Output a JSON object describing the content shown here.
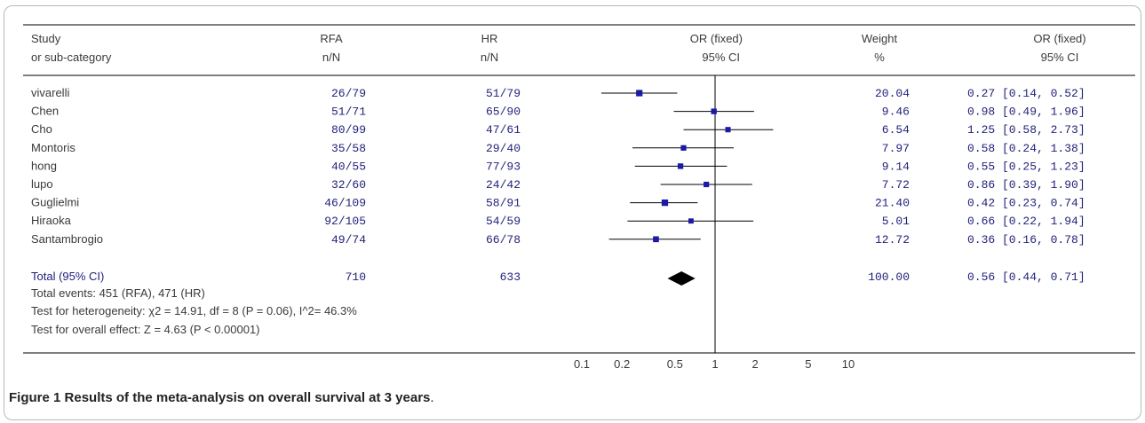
{
  "header": {
    "study_line1": "Study",
    "study_line2": "or sub-category",
    "rfa_line1": "RFA",
    "rfa_line2": "n/N",
    "hr_line1": "HR",
    "hr_line2": "n/N",
    "or_line1": "OR (fixed)",
    "or_line2": "95% CI",
    "weight_line1": "Weight",
    "weight_line2": "%",
    "orci_line1": "OR (fixed)",
    "orci_line2": "95% CI"
  },
  "studies": [
    {
      "name": "vivarelli",
      "rfa": "26/79",
      "hr": "51/79",
      "weight": "20.04",
      "ci_text": "0.27 [0.14, 0.52]"
    },
    {
      "name": "Chen",
      "rfa": "51/71",
      "hr": "65/90",
      "weight": "9.46",
      "ci_text": "0.98 [0.49, 1.96]"
    },
    {
      "name": "Cho",
      "rfa": "80/99",
      "hr": "47/61",
      "weight": "6.54",
      "ci_text": "1.25 [0.58, 2.73]"
    },
    {
      "name": "Montoris",
      "rfa": "35/58",
      "hr": "29/40",
      "weight": "7.97",
      "ci_text": "0.58 [0.24, 1.38]"
    },
    {
      "name": "hong",
      "rfa": "40/55",
      "hr": "77/93",
      "weight": "9.14",
      "ci_text": "0.55 [0.25, 1.23]"
    },
    {
      "name": "lupo",
      "rfa": "32/60",
      "hr": "24/42",
      "weight": "7.72",
      "ci_text": "0.86 [0.39, 1.90]"
    },
    {
      "name": "Guglielmi",
      "rfa": "46/109",
      "hr": "58/91",
      "weight": "21.40",
      "ci_text": "0.42 [0.23, 0.74]"
    },
    {
      "name": "Hiraoka",
      "rfa": "92/105",
      "hr": "54/59",
      "weight": "5.01",
      "ci_text": "0.66 [0.22, 1.94]"
    },
    {
      "name": "Santambrogio",
      "rfa": "49/74",
      "hr": "66/78",
      "weight": "12.72",
      "ci_text": "0.36 [0.16, 0.78]"
    }
  ],
  "total": {
    "label": "Total (95% CI)",
    "rfa": "710",
    "hr": "633",
    "weight": "100.00",
    "ci_text": "0.56 [0.44, 0.71]"
  },
  "footnotes": {
    "events": "Total events: 451 (RFA), 471 (HR)",
    "heterogeneity": "Test for heterogeneity:  χ2 = 14.91, df = 8 (P = 0.06), I^2= 46.3%",
    "overall": "Test for overall effect: Z = 4.63 (P < 0.00001)"
  },
  "caption": {
    "label": "Figure 1",
    "title": "Results of the meta-analysis on overall survival at 3 years",
    "end": "."
  },
  "colors": {
    "marker": "#1a1aa6",
    "diamond": "#000000",
    "line": "#000000"
  },
  "chart_data": {
    "type": "forest",
    "scale": "log",
    "xlim": [
      0.1,
      10
    ],
    "reference_value": 1,
    "ticks": [
      {
        "value": 0.1,
        "label": "0.1"
      },
      {
        "value": 0.2,
        "label": "0.2"
      },
      {
        "value": 0.5,
        "label": "0.5"
      },
      {
        "value": 1,
        "label": "1"
      },
      {
        "value": 2,
        "label": "2"
      },
      {
        "value": 5,
        "label": "5"
      },
      {
        "value": 10,
        "label": "10"
      }
    ],
    "points": [
      {
        "study": "vivarelli",
        "or": 0.27,
        "lower": 0.14,
        "upper": 0.52,
        "weight": 20.04
      },
      {
        "study": "Chen",
        "or": 0.98,
        "lower": 0.49,
        "upper": 1.96,
        "weight": 9.46
      },
      {
        "study": "Cho",
        "or": 1.25,
        "lower": 0.58,
        "upper": 2.73,
        "weight": 6.54
      },
      {
        "study": "Montoris",
        "or": 0.58,
        "lower": 0.24,
        "upper": 1.38,
        "weight": 7.97
      },
      {
        "study": "hong",
        "or": 0.55,
        "lower": 0.25,
        "upper": 1.23,
        "weight": 9.14
      },
      {
        "study": "lupo",
        "or": 0.86,
        "lower": 0.39,
        "upper": 1.9,
        "weight": 7.72
      },
      {
        "study": "Guglielmi",
        "or": 0.42,
        "lower": 0.23,
        "upper": 0.74,
        "weight": 21.4
      },
      {
        "study": "Hiraoka",
        "or": 0.66,
        "lower": 0.22,
        "upper": 1.94,
        "weight": 5.01
      },
      {
        "study": "Santambrogio",
        "or": 0.36,
        "lower": 0.16,
        "upper": 0.78,
        "weight": 12.72
      }
    ],
    "pooled": {
      "or": 0.56,
      "lower": 0.44,
      "upper": 0.71
    }
  }
}
